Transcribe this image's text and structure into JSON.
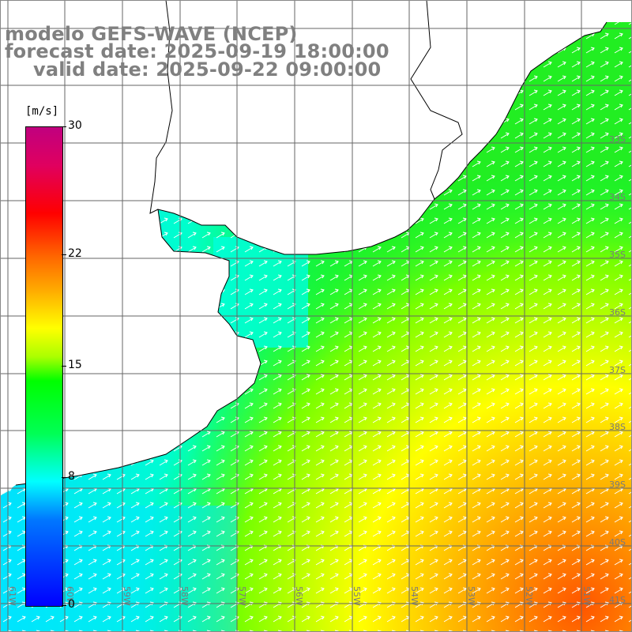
{
  "title": {
    "line1": "modelo GEFS-WAVE (NCEP)",
    "line2": "forecast date: 2025-09-19 18:00:00",
    "line3": "valid date: 2025-09-22 09:00:00"
  },
  "colorbar": {
    "unit": "[m/s]",
    "ticks": [
      "30",
      "22",
      "15",
      "8",
      "0"
    ],
    "tick_values": [
      30,
      22,
      15,
      8,
      0
    ],
    "min": 0,
    "max": 30,
    "colors": [
      "#0000ff",
      "#0077ff",
      "#00ffff",
      "#00ff55",
      "#00ff00",
      "#aaff00",
      "#ffff00",
      "#ffaa00",
      "#ff6600",
      "#ff0000",
      "#e0005f",
      "#c0007f"
    ]
  },
  "map": {
    "lat_labels": [
      "33S",
      "34S",
      "35S",
      "36S",
      "37S",
      "38S",
      "39S",
      "40S",
      "41S"
    ],
    "lon_labels": [
      "61W",
      "60W",
      "59W",
      "58W",
      "57W",
      "56W",
      "55W",
      "54W",
      "53W",
      "52W",
      "51W"
    ],
    "lat_range": [
      -41.3,
      -31.0
    ],
    "lon_range": [
      -61.3,
      -50.4
    ],
    "grid_spacing_deg": 1,
    "field": "wind speed",
    "arrows": "white wind direction arrows, toward northeast"
  }
}
